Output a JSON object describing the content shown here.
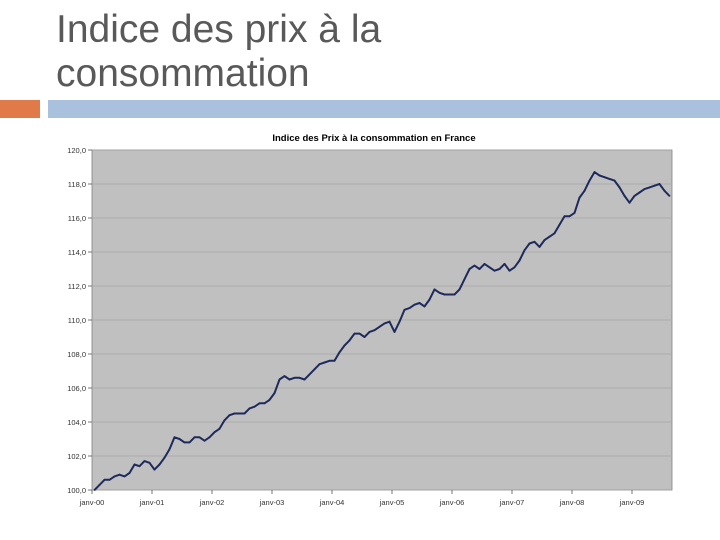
{
  "slide": {
    "title_lines": [
      "Indice des prix à la",
      "consommation"
    ]
  },
  "colors": {
    "accent_orange": "#e07a48",
    "accent_blue": "#a9c1dc",
    "plot_background": "#c0c0c0",
    "series_line": "#1f2a5c"
  },
  "chart_data": {
    "type": "line",
    "title": "Indice des Prix à la consommation en France",
    "xlabel": "",
    "ylabel": "",
    "ylim": [
      100,
      120
    ],
    "yticks": [
      "100,0",
      "102,0",
      "104,0",
      "106,0",
      "108,0",
      "110,0",
      "112,0",
      "114,0",
      "116,0",
      "118,0",
      "120,0"
    ],
    "xticks": [
      {
        "label": "janv-00",
        "x": 0
      },
      {
        "label": "janv-01",
        "x": 12
      },
      {
        "label": "janv-02",
        "x": 24
      },
      {
        "label": "janv-03",
        "x": 36
      },
      {
        "label": "janv-04",
        "x": 48
      },
      {
        "label": "janv-05",
        "x": 60
      },
      {
        "label": "janv-06",
        "x": 72
      },
      {
        "label": "janv-07",
        "x": 84
      },
      {
        "label": "janv-08",
        "x": 96
      },
      {
        "label": "janv-09",
        "x": 108
      }
    ],
    "grid": true,
    "legend": "none",
    "series": [
      {
        "x": [
          0,
          1,
          2,
          3,
          4,
          5,
          6,
          7,
          8,
          9,
          10,
          11,
          12,
          13,
          14,
          15,
          16,
          17,
          18,
          19,
          20,
          21,
          22,
          23,
          24,
          25,
          26,
          27,
          28,
          29,
          30,
          31,
          32,
          33,
          34,
          35,
          36,
          37,
          38,
          39,
          40,
          41,
          42,
          43,
          44,
          45,
          46,
          47,
          48,
          49,
          50,
          51,
          52,
          53,
          54,
          55,
          56,
          57,
          58,
          59,
          60,
          61,
          62,
          63,
          64,
          65,
          66,
          67,
          68,
          69,
          70,
          71,
          72,
          73,
          74,
          75,
          76,
          77,
          78,
          79,
          80,
          81,
          82,
          83,
          84,
          85,
          86,
          87,
          88,
          89,
          90,
          91,
          92,
          93,
          94,
          95,
          96,
          97,
          98,
          99,
          100,
          101,
          102,
          103,
          104,
          105,
          106,
          107,
          108,
          109,
          110,
          111,
          112,
          113,
          114,
          115
        ],
        "values": [
          100.0,
          100.3,
          100.6,
          100.6,
          100.8,
          100.9,
          100.8,
          101.0,
          101.5,
          101.4,
          101.7,
          101.6,
          101.2,
          101.5,
          101.9,
          102.4,
          103.1,
          103.0,
          102.8,
          102.8,
          103.1,
          103.1,
          102.9,
          103.1,
          103.4,
          103.6,
          104.1,
          104.4,
          104.5,
          104.5,
          104.5,
          104.8,
          104.9,
          105.1,
          105.1,
          105.3,
          105.7,
          106.5,
          106.7,
          106.5,
          106.6,
          106.6,
          106.5,
          106.8,
          107.1,
          107.4,
          107.5,
          107.6,
          107.6,
          108.1,
          108.5,
          108.8,
          109.2,
          109.2,
          109.0,
          109.3,
          109.4,
          109.6,
          109.8,
          109.9,
          109.3,
          109.9,
          110.6,
          110.7,
          110.9,
          111.0,
          110.8,
          111.2,
          111.8,
          111.6,
          111.5,
          111.5,
          111.5,
          111.8,
          112.4,
          113.0,
          113.2,
          113.0,
          113.3,
          113.1,
          112.9,
          113.0,
          113.3,
          112.9,
          113.1,
          113.5,
          114.1,
          114.5,
          114.6,
          114.3,
          114.7,
          114.9,
          115.1,
          115.6,
          116.1,
          116.1,
          116.3,
          117.2,
          117.6,
          118.2,
          118.7,
          118.5,
          118.4,
          118.3,
          118.2,
          117.8,
          117.3,
          116.9,
          117.3,
          117.5,
          117.7,
          117.8,
          117.9,
          118.0,
          117.6,
          117.3
        ]
      }
    ]
  }
}
